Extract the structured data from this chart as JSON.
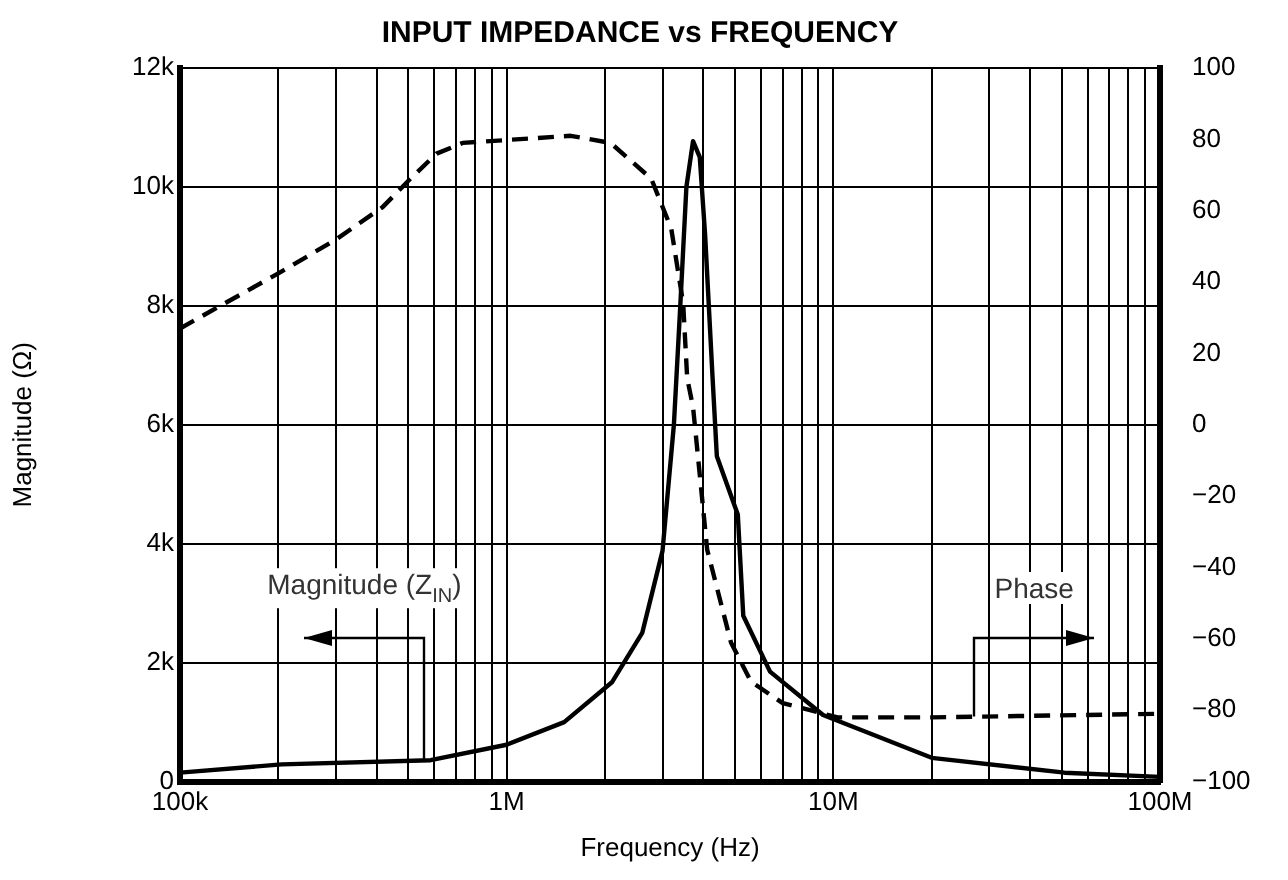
{
  "chart_data": {
    "type": "line",
    "title": "INPUT IMPEDANCE vs FREQUENCY",
    "xlabel": "Frequency (Hz)",
    "ylabel": "Magnitude (Ω)",
    "log": "x",
    "grid": true,
    "legend": false,
    "marker": "none",
    "xlim": [
      100000,
      100000000
    ],
    "xticks": [
      {
        "value": 100000,
        "label": "100k"
      },
      {
        "value": 200000,
        "label": null
      },
      {
        "value": 300000,
        "label": null
      },
      {
        "value": 400000,
        "label": null
      },
      {
        "value": 500000,
        "label": null
      },
      {
        "value": 600000,
        "label": null
      },
      {
        "value": 700000,
        "label": null
      },
      {
        "value": 800000,
        "label": null
      },
      {
        "value": 900000,
        "label": null
      },
      {
        "value": 1000000,
        "label": "1M"
      },
      {
        "value": 2000000,
        "label": null
      },
      {
        "value": 3000000,
        "label": null
      },
      {
        "value": 4000000,
        "label": null
      },
      {
        "value": 5000000,
        "label": null
      },
      {
        "value": 6000000,
        "label": null
      },
      {
        "value": 7000000,
        "label": null
      },
      {
        "value": 8000000,
        "label": null
      },
      {
        "value": 9000000,
        "label": null
      },
      {
        "value": 10000000,
        "label": "10M"
      },
      {
        "value": 20000000,
        "label": null
      },
      {
        "value": 30000000,
        "label": null
      },
      {
        "value": 40000000,
        "label": null
      },
      {
        "value": 50000000,
        "label": null
      },
      {
        "value": 60000000,
        "label": null
      },
      {
        "value": 70000000,
        "label": null
      },
      {
        "value": 80000000,
        "label": null
      },
      {
        "value": 90000000,
        "label": null
      },
      {
        "value": 100000000,
        "label": "100M"
      }
    ],
    "ylim": [
      0,
      12000
    ],
    "yticks": [
      {
        "value": 0,
        "label": "0"
      },
      {
        "value": 2000,
        "label": "2k"
      },
      {
        "value": 4000,
        "label": "4k"
      },
      {
        "value": 6000,
        "label": "6k"
      },
      {
        "value": 8000,
        "label": "8k"
      },
      {
        "value": 10000,
        "label": "10k"
      },
      {
        "value": 12000,
        "label": "12k"
      }
    ],
    "y2lim": [
      -100,
      100
    ],
    "y2ticks": [
      {
        "value": -100,
        "label": "−100"
      },
      {
        "value": -80,
        "label": "−80"
      },
      {
        "value": -60,
        "label": "−60"
      },
      {
        "value": -40,
        "label": "−40"
      },
      {
        "value": -20,
        "label": "−20"
      },
      0,
      20,
      40,
      60,
      80,
      100
    ],
    "series": [
      {
        "color": "#000000",
        "line_style": "solid",
        "x": [
          100000,
          205000,
          585000,
          1000000,
          1500000,
          2100000,
          2600000,
          3000000,
          3250000,
          3400000,
          3550000,
          3720000,
          3900000,
          4050000,
          4270000,
          4400000,
          5100000,
          5300000,
          6400000,
          9300000,
          20000000,
          51000000,
          100000000
        ],
        "values": [
          150,
          290,
          360,
          620,
          1000,
          1670,
          2500,
          3880,
          6000,
          8000,
          10000,
          10770,
          10500,
          9200,
          6780,
          5470,
          4490,
          2790,
          1850,
          1120,
          400,
          150,
          80
        ]
      },
      {
        "color": "#000000",
        "line_style": "dashed",
        "axis": "y2",
        "x": [
          100000,
          205000,
          301000,
          417000,
          508000,
          610000,
          733000,
          1570000,
          2080000,
          2770000,
          3190000,
          3470000,
          3570000,
          3720000,
          4110000,
          4860000,
          5600000,
          7000000,
          10300000,
          20000000,
          100000000
        ],
        "values": [
          27,
          43,
          52,
          61,
          69,
          76,
          79,
          81,
          79,
          69,
          55,
          34,
          13,
          5,
          -35,
          -61,
          -72,
          -78,
          -82,
          -82,
          -81
        ]
      }
    ],
    "annotations": [
      {
        "text": "Magnitude (Z$_{IN}$)",
        "x": 560000,
        "y": 360
      },
      {
        "text": "Phase",
        "x": 27000000,
        "y": 1080
      }
    ]
  }
}
